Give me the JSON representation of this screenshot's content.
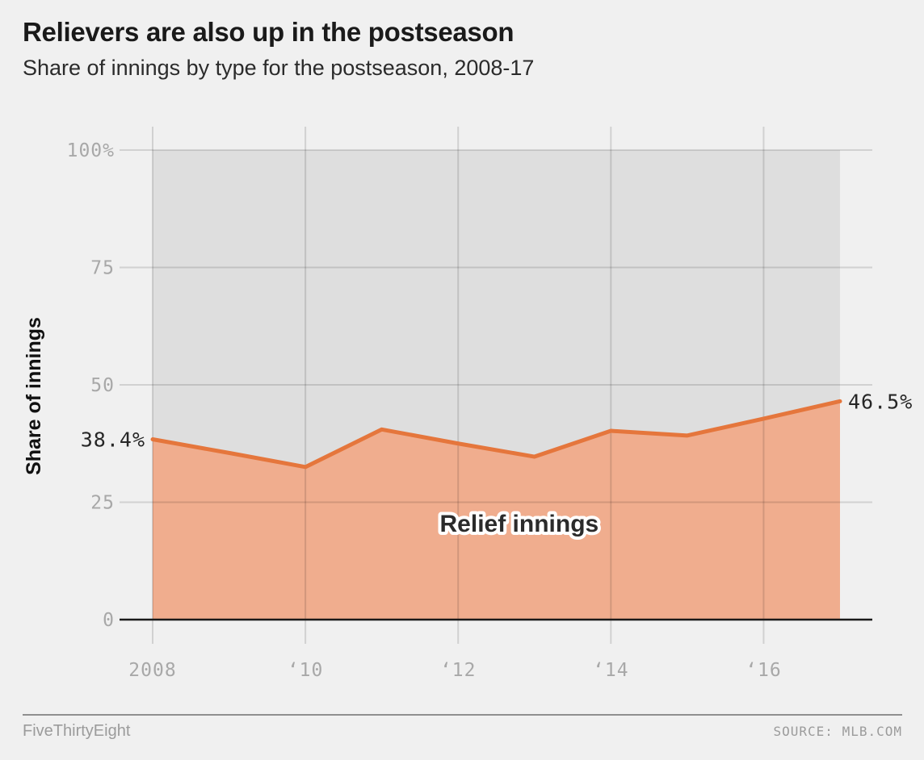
{
  "header": {
    "title": "Relievers are also up in the postseason",
    "subtitle": "Share of innings by type for the postseason, 2008-17"
  },
  "chart_data": {
    "type": "area",
    "title": "Relievers are also up in the postseason",
    "subtitle": "Share of innings by type for the postseason, 2008-17",
    "ylabel": "Share of innings",
    "xlabel": "",
    "xlim": [
      2008,
      2017
    ],
    "ylim": [
      0,
      100
    ],
    "grid": true,
    "stacked_to_100": true,
    "x": [
      2008,
      2009,
      2010,
      2011,
      2012,
      2013,
      2014,
      2015,
      2016,
      2017
    ],
    "series": [
      {
        "name": "Relief innings",
        "values": [
          38.4,
          35.5,
          32.5,
          40.5,
          37.5,
          34.7,
          40.2,
          39.2,
          42.8,
          46.5
        ]
      }
    ],
    "yticks": [
      {
        "v": 100,
        "label": "100%"
      },
      {
        "v": 75,
        "label": "75"
      },
      {
        "v": 50,
        "label": "50"
      },
      {
        "v": 25,
        "label": "25"
      },
      {
        "v": 0,
        "label": "0"
      }
    ],
    "xticks": [
      {
        "v": 2008,
        "label": "2008"
      },
      {
        "v": 2010,
        "label": "‘10"
      },
      {
        "v": 2012,
        "label": "‘12"
      },
      {
        "v": 2014,
        "label": "‘14"
      },
      {
        "v": 2016,
        "label": "‘16"
      }
    ],
    "annotations": [
      {
        "text": "38.4%",
        "x": 2008,
        "y": 38.4,
        "anchor": "end",
        "role": "point-label",
        "name": "value-label-2008"
      },
      {
        "text": "46.5%",
        "x": 2017,
        "y": 46.5,
        "anchor": "start",
        "role": "point-label",
        "name": "value-label-2017"
      },
      {
        "text": "Relief innings",
        "x": 2012.8,
        "y": 20.6,
        "anchor": "middle",
        "role": "series-label",
        "name": "series-label-relief-innings"
      }
    ],
    "colors": {
      "background": "#f0f0f0",
      "relief_fill": "#f0ad8e",
      "remainder_fill": "#dedede",
      "line": "#e5763c",
      "grid": "rgba(0,0,0,0.13)",
      "zero_axis": "#1a1a1a",
      "tick_text": "#a8a8a8",
      "label_text": "#262626"
    }
  },
  "footer": {
    "brand": "FiveThirtyEight",
    "source": "SOURCE: MLB.COM"
  }
}
